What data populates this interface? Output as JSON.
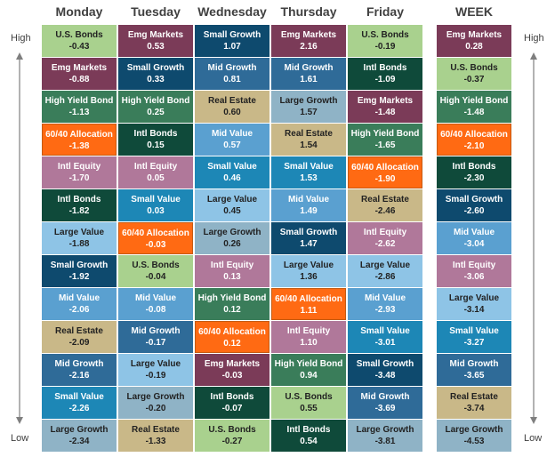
{
  "chart_data": {
    "type": "table",
    "columns": [
      "Monday",
      "Tuesday",
      "Wednesday",
      "Thursday",
      "Friday",
      "WEEK"
    ],
    "axis": {
      "top": "High",
      "bottom": "Low"
    },
    "colors": {
      "U.S. Bonds": "#a9d18e",
      "Emg Markets": "#7b3b58",
      "High Yield Bond": "#3a7d5a",
      "60/40 Allocation": "#ff6a13",
      "Intl Equity": "#b0789a",
      "Intl Bonds": "#0f4a3a",
      "Large Value": "#8ec4e6",
      "Small Growth": "#0e4a6e",
      "Mid Value": "#5aa0d0",
      "Real Estate": "#c9b888",
      "Mid Growth": "#2f6b98",
      "Small Value": "#1d87b6",
      "Large Growth": "#8fb3c6"
    },
    "rows": [
      [
        {
          "name": "U.S. Bonds",
          "value": "-0.43"
        },
        {
          "name": "Emg Markets",
          "value": "0.53"
        },
        {
          "name": "Small Growth",
          "value": "1.07"
        },
        {
          "name": "Emg Markets",
          "value": "2.16"
        },
        {
          "name": "U.S. Bonds",
          "value": "-0.19"
        },
        {
          "name": "Emg Markets",
          "value": "0.28"
        }
      ],
      [
        {
          "name": "Emg Markets",
          "value": "-0.88"
        },
        {
          "name": "Small Growth",
          "value": "0.33"
        },
        {
          "name": "Mid Growth",
          "value": "0.81"
        },
        {
          "name": "Mid Growth",
          "value": "1.61"
        },
        {
          "name": "Intl Bonds",
          "value": "-1.09"
        },
        {
          "name": "U.S. Bonds",
          "value": "-0.37"
        }
      ],
      [
        {
          "name": "High Yield Bond",
          "value": "-1.13"
        },
        {
          "name": "High Yield Bond",
          "value": "0.25"
        },
        {
          "name": "Real Estate",
          "value": "0.60"
        },
        {
          "name": "Large Growth",
          "value": "1.57"
        },
        {
          "name": "Emg Markets",
          "value": "-1.48"
        },
        {
          "name": "High Yield Bond",
          "value": "-1.48"
        }
      ],
      [
        {
          "name": "60/40 Allocation",
          "value": "-1.38"
        },
        {
          "name": "Intl Bonds",
          "value": "0.15"
        },
        {
          "name": "Mid Value",
          "value": "0.57"
        },
        {
          "name": "Real Estate",
          "value": "1.54"
        },
        {
          "name": "High Yield Bond",
          "value": "-1.65"
        },
        {
          "name": "60/40 Allocation",
          "value": "-2.10"
        }
      ],
      [
        {
          "name": "Intl Equity",
          "value": "-1.70"
        },
        {
          "name": "Intl Equity",
          "value": "0.05"
        },
        {
          "name": "Small Value",
          "value": "0.46"
        },
        {
          "name": "Small Value",
          "value": "1.53"
        },
        {
          "name": "60/40 Allocation",
          "value": "-1.90"
        },
        {
          "name": "Intl Bonds",
          "value": "-2.30"
        }
      ],
      [
        {
          "name": "Intl Bonds",
          "value": "-1.82"
        },
        {
          "name": "Small Value",
          "value": "0.03"
        },
        {
          "name": "Large Value",
          "value": "0.45"
        },
        {
          "name": "Mid Value",
          "value": "1.49"
        },
        {
          "name": "Real Estate",
          "value": "-2.46"
        },
        {
          "name": "Small Growth",
          "value": "-2.60"
        }
      ],
      [
        {
          "name": "Large Value",
          "value": "-1.88"
        },
        {
          "name": "60/40 Allocation",
          "value": "-0.03"
        },
        {
          "name": "Large Growth",
          "value": "0.26"
        },
        {
          "name": "Small Growth",
          "value": "1.47"
        },
        {
          "name": "Intl Equity",
          "value": "-2.62"
        },
        {
          "name": "Mid Value",
          "value": "-3.04"
        }
      ],
      [
        {
          "name": "Small Growth",
          "value": "-1.92"
        },
        {
          "name": "U.S. Bonds",
          "value": "-0.04"
        },
        {
          "name": "Intl Equity",
          "value": "0.13"
        },
        {
          "name": "Large Value",
          "value": "1.36"
        },
        {
          "name": "Large Value",
          "value": "-2.86"
        },
        {
          "name": "Intl Equity",
          "value": "-3.06"
        }
      ],
      [
        {
          "name": "Mid Value",
          "value": "-2.06"
        },
        {
          "name": "Mid Value",
          "value": "-0.08"
        },
        {
          "name": "High Yield Bond",
          "value": "0.12"
        },
        {
          "name": "60/40 Allocation",
          "value": "1.11"
        },
        {
          "name": "Mid Value",
          "value": "-2.93"
        },
        {
          "name": "Large Value",
          "value": "-3.14"
        }
      ],
      [
        {
          "name": "Real Estate",
          "value": "-2.09"
        },
        {
          "name": "Mid Growth",
          "value": "-0.17"
        },
        {
          "name": "60/40 Allocation",
          "value": "0.12"
        },
        {
          "name": "Intl Equity",
          "value": "1.10"
        },
        {
          "name": "Small Value",
          "value": "-3.01"
        },
        {
          "name": "Small Value",
          "value": "-3.27"
        }
      ],
      [
        {
          "name": "Mid Growth",
          "value": "-2.16"
        },
        {
          "name": "Large Value",
          "value": "-0.19"
        },
        {
          "name": "Emg Markets",
          "value": "-0.03"
        },
        {
          "name": "High Yield Bond",
          "value": "0.94"
        },
        {
          "name": "Small Growth",
          "value": "-3.48"
        },
        {
          "name": "Mid Growth",
          "value": "-3.65"
        }
      ],
      [
        {
          "name": "Small Value",
          "value": "-2.26"
        },
        {
          "name": "Large Growth",
          "value": "-0.20"
        },
        {
          "name": "Intl Bonds",
          "value": "-0.07"
        },
        {
          "name": "U.S. Bonds",
          "value": "0.55"
        },
        {
          "name": "Mid Growth",
          "value": "-3.69"
        },
        {
          "name": "Real Estate",
          "value": "-3.74"
        }
      ],
      [
        {
          "name": "Large Growth",
          "value": "-2.34"
        },
        {
          "name": "Real Estate",
          "value": "-1.33"
        },
        {
          "name": "U.S. Bonds",
          "value": "-0.27"
        },
        {
          "name": "Intl Bonds",
          "value": "0.54"
        },
        {
          "name": "Large Growth",
          "value": "-3.81"
        },
        {
          "name": "Large Growth",
          "value": "-4.53"
        }
      ]
    ]
  }
}
